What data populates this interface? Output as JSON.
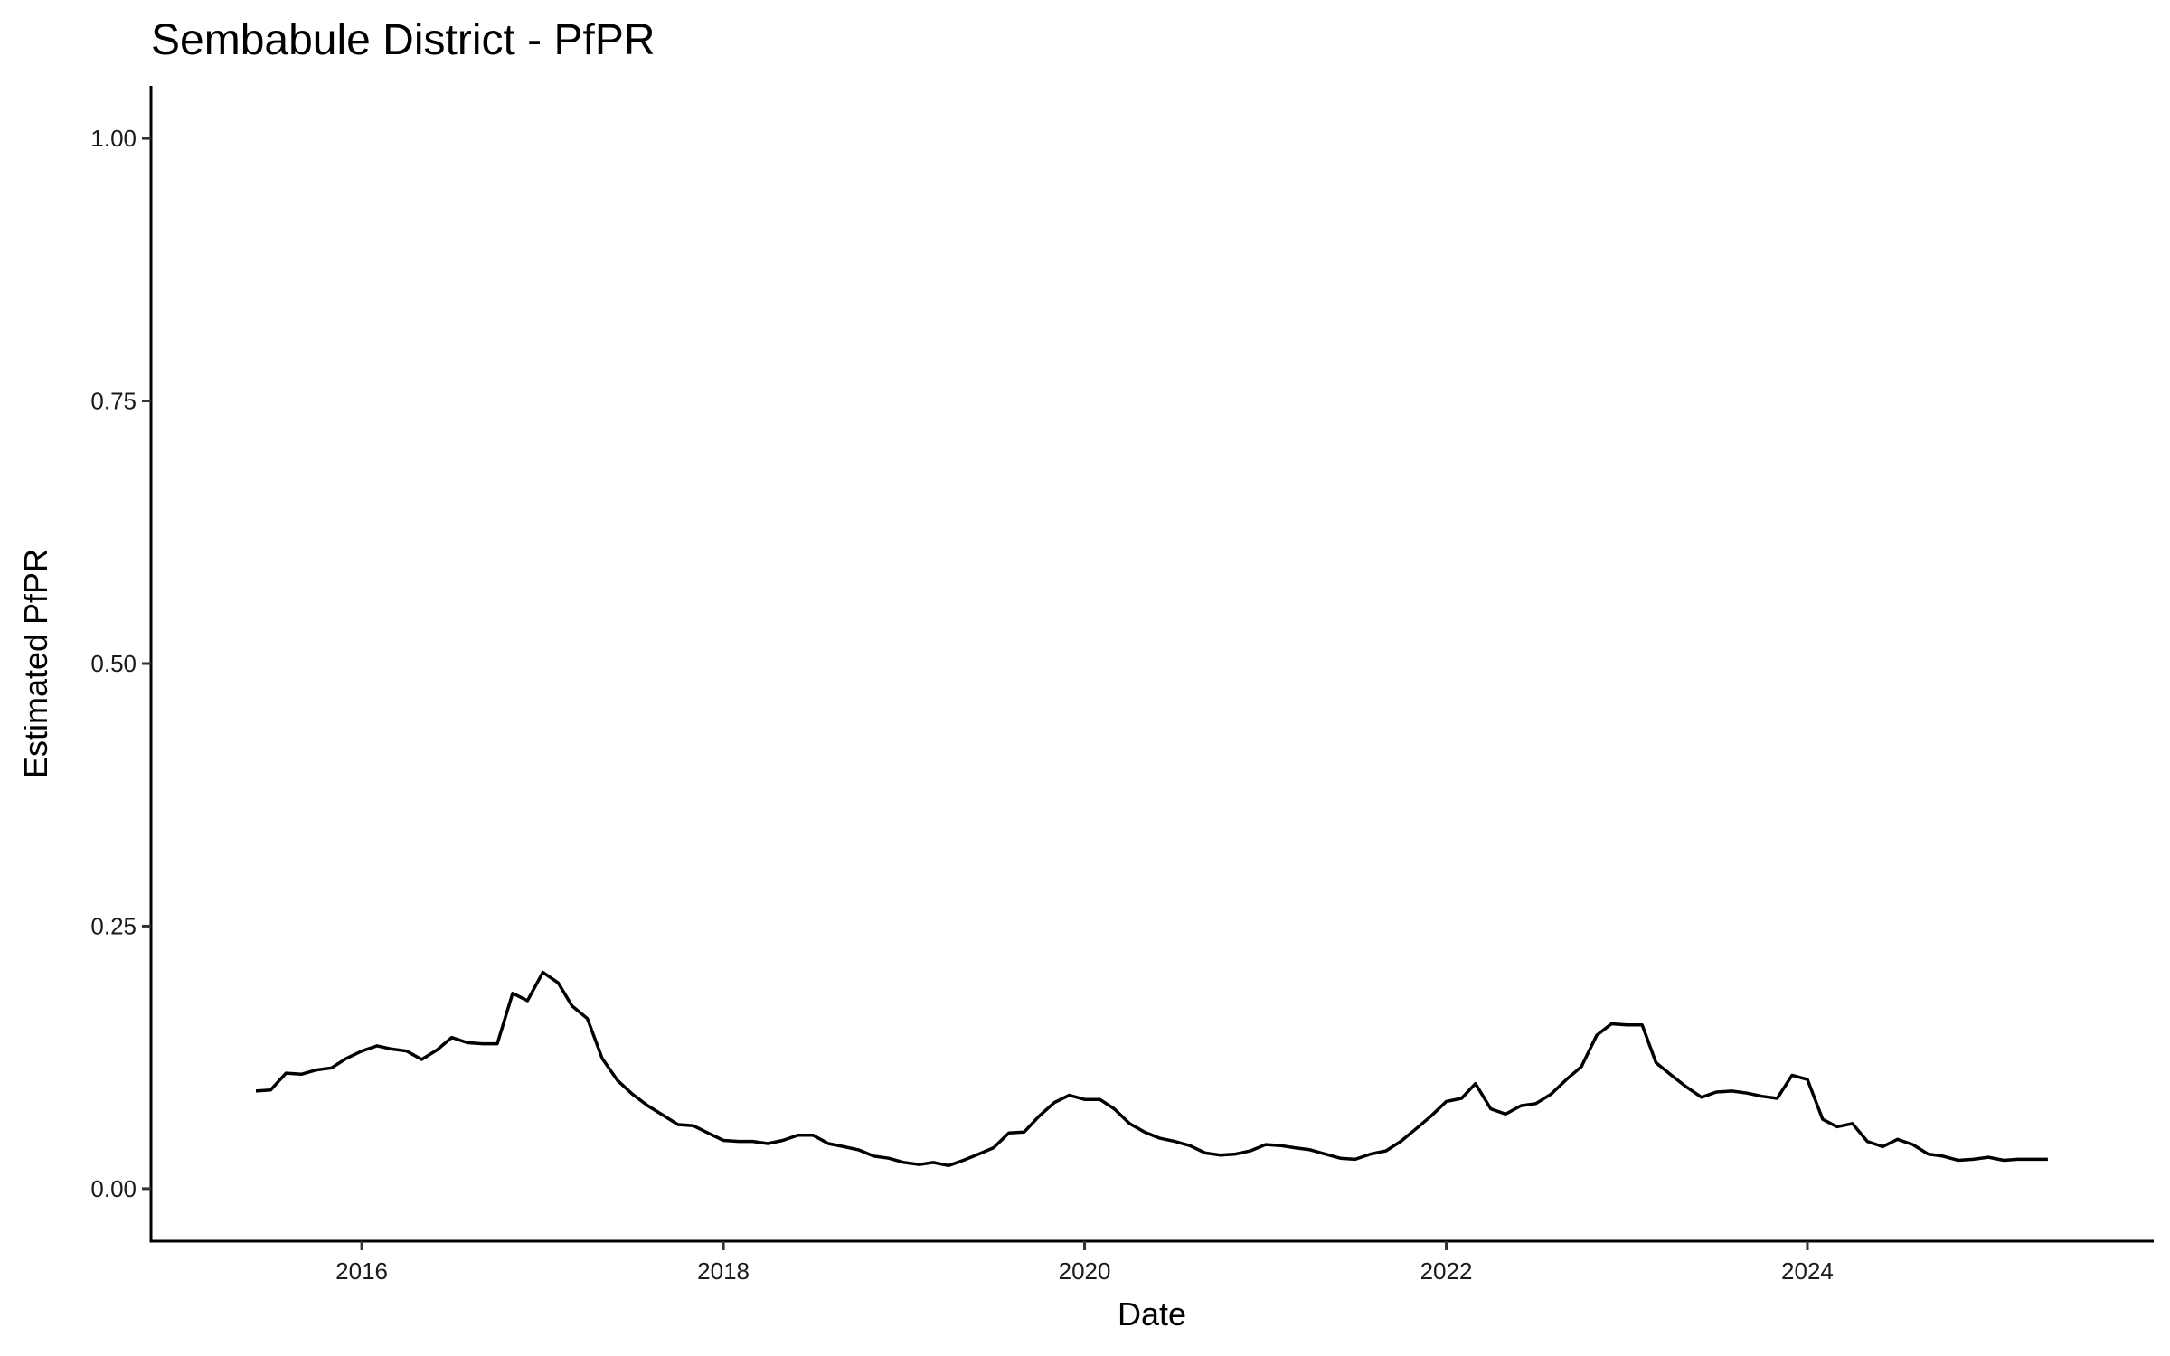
{
  "chart_data": {
    "type": "line",
    "title": "Sembabule District - PfPR",
    "xlabel": "Date",
    "ylabel": "Estimated PfPR",
    "ylim": [
      -0.05,
      1.05
    ],
    "xlim": [
      "2014-11-01",
      "2025-12-01"
    ],
    "grid": false,
    "legend": "none",
    "line_color": "#000000",
    "y_ticks": [
      {
        "value": 0.0,
        "label": "0.00"
      },
      {
        "value": 0.25,
        "label": "0.25"
      },
      {
        "value": 0.5,
        "label": "0.50"
      },
      {
        "value": 0.75,
        "label": "0.75"
      },
      {
        "value": 1.0,
        "label": "1.00"
      }
    ],
    "x_ticks": [
      {
        "value": "2016-01-01",
        "label": "2016"
      },
      {
        "value": "2018-01-01",
        "label": "2018"
      },
      {
        "value": "2020-01-01",
        "label": "2020"
      },
      {
        "value": "2022-01-01",
        "label": "2022"
      },
      {
        "value": "2024-01-01",
        "label": "2024"
      }
    ],
    "series": [
      {
        "color": "#000000",
        "points": [
          [
            "2015-06-01",
            0.093
          ],
          [
            "2015-07-01",
            0.094
          ],
          [
            "2015-08-01",
            0.11
          ],
          [
            "2015-09-01",
            0.109
          ],
          [
            "2015-10-01",
            0.113
          ],
          [
            "2015-11-01",
            0.115
          ],
          [
            "2015-12-01",
            0.124
          ],
          [
            "2016-01-01",
            0.131
          ],
          [
            "2016-02-01",
            0.136
          ],
          [
            "2016-03-01",
            0.133
          ],
          [
            "2016-04-01",
            0.131
          ],
          [
            "2016-05-01",
            0.123
          ],
          [
            "2016-06-01",
            0.132
          ],
          [
            "2016-07-01",
            0.144
          ],
          [
            "2016-08-01",
            0.139
          ],
          [
            "2016-09-01",
            0.138
          ],
          [
            "2016-10-01",
            0.138
          ],
          [
            "2016-11-01",
            0.186
          ],
          [
            "2016-12-01",
            0.179
          ],
          [
            "2017-01-01",
            0.206
          ],
          [
            "2017-02-01",
            0.196
          ],
          [
            "2017-03-01",
            0.174
          ],
          [
            "2017-04-01",
            0.162
          ],
          [
            "2017-05-01",
            0.124
          ],
          [
            "2017-06-01",
            0.103
          ],
          [
            "2017-07-01",
            0.09
          ],
          [
            "2017-08-01",
            0.079
          ],
          [
            "2017-09-01",
            0.07
          ],
          [
            "2017-10-01",
            0.061
          ],
          [
            "2017-11-01",
            0.06
          ],
          [
            "2017-12-01",
            0.053
          ],
          [
            "2018-01-01",
            0.046
          ],
          [
            "2018-02-01",
            0.045
          ],
          [
            "2018-03-01",
            0.045
          ],
          [
            "2018-04-01",
            0.043
          ],
          [
            "2018-05-01",
            0.046
          ],
          [
            "2018-06-01",
            0.051
          ],
          [
            "2018-07-01",
            0.051
          ],
          [
            "2018-08-01",
            0.043
          ],
          [
            "2018-09-01",
            0.04
          ],
          [
            "2018-10-01",
            0.037
          ],
          [
            "2018-11-01",
            0.031
          ],
          [
            "2018-12-01",
            0.029
          ],
          [
            "2019-01-01",
            0.025
          ],
          [
            "2019-02-01",
            0.023
          ],
          [
            "2019-03-01",
            0.025
          ],
          [
            "2019-04-01",
            0.022
          ],
          [
            "2019-05-01",
            0.027
          ],
          [
            "2019-06-01",
            0.033
          ],
          [
            "2019-07-01",
            0.039
          ],
          [
            "2019-08-01",
            0.053
          ],
          [
            "2019-09-01",
            0.054
          ],
          [
            "2019-10-01",
            0.069
          ],
          [
            "2019-11-01",
            0.082
          ],
          [
            "2019-12-01",
            0.089
          ],
          [
            "2020-01-01",
            0.085
          ],
          [
            "2020-02-01",
            0.085
          ],
          [
            "2020-03-01",
            0.076
          ],
          [
            "2020-04-01",
            0.062
          ],
          [
            "2020-05-01",
            0.054
          ],
          [
            "2020-06-01",
            0.048
          ],
          [
            "2020-07-01",
            0.045
          ],
          [
            "2020-08-01",
            0.041
          ],
          [
            "2020-09-01",
            0.034
          ],
          [
            "2020-10-01",
            0.032
          ],
          [
            "2020-11-01",
            0.033
          ],
          [
            "2020-12-01",
            0.036
          ],
          [
            "2021-01-01",
            0.042
          ],
          [
            "2021-02-01",
            0.041
          ],
          [
            "2021-03-01",
            0.039
          ],
          [
            "2021-04-01",
            0.037
          ],
          [
            "2021-05-01",
            0.033
          ],
          [
            "2021-06-01",
            0.029
          ],
          [
            "2021-07-01",
            0.028
          ],
          [
            "2021-08-01",
            0.033
          ],
          [
            "2021-09-01",
            0.036
          ],
          [
            "2021-10-01",
            0.045
          ],
          [
            "2021-11-01",
            0.057
          ],
          [
            "2021-12-01",
            0.069
          ],
          [
            "2022-01-01",
            0.083
          ],
          [
            "2022-02-01",
            0.086
          ],
          [
            "2022-03-01",
            0.1
          ],
          [
            "2022-04-01",
            0.076
          ],
          [
            "2022-05-01",
            0.071
          ],
          [
            "2022-06-01",
            0.079
          ],
          [
            "2022-07-01",
            0.081
          ],
          [
            "2022-08-01",
            0.09
          ],
          [
            "2022-09-01",
            0.104
          ],
          [
            "2022-10-01",
            0.116
          ],
          [
            "2022-11-01",
            0.146
          ],
          [
            "2022-12-01",
            0.157
          ],
          [
            "2023-01-01",
            0.156
          ],
          [
            "2023-02-01",
            0.156
          ],
          [
            "2023-03-01",
            0.12
          ],
          [
            "2023-04-01",
            0.108
          ],
          [
            "2023-05-01",
            0.097
          ],
          [
            "2023-06-01",
            0.087
          ],
          [
            "2023-07-01",
            0.092
          ],
          [
            "2023-08-01",
            0.093
          ],
          [
            "2023-09-01",
            0.091
          ],
          [
            "2023-10-01",
            0.088
          ],
          [
            "2023-11-01",
            0.086
          ],
          [
            "2023-12-01",
            0.108
          ],
          [
            "2024-01-01",
            0.104
          ],
          [
            "2024-02-01",
            0.066
          ],
          [
            "2024-03-01",
            0.059
          ],
          [
            "2024-04-01",
            0.062
          ],
          [
            "2024-05-01",
            0.045
          ],
          [
            "2024-06-01",
            0.04
          ],
          [
            "2024-07-01",
            0.047
          ],
          [
            "2024-08-01",
            0.042
          ],
          [
            "2024-09-01",
            0.033
          ],
          [
            "2024-10-01",
            0.031
          ],
          [
            "2024-11-01",
            0.027
          ],
          [
            "2024-12-01",
            0.028
          ],
          [
            "2025-01-01",
            0.03
          ],
          [
            "2025-02-01",
            0.027
          ],
          [
            "2025-03-01",
            0.028
          ],
          [
            "2025-04-01",
            0.028
          ],
          [
            "2025-05-01",
            0.028
          ]
        ]
      }
    ]
  }
}
